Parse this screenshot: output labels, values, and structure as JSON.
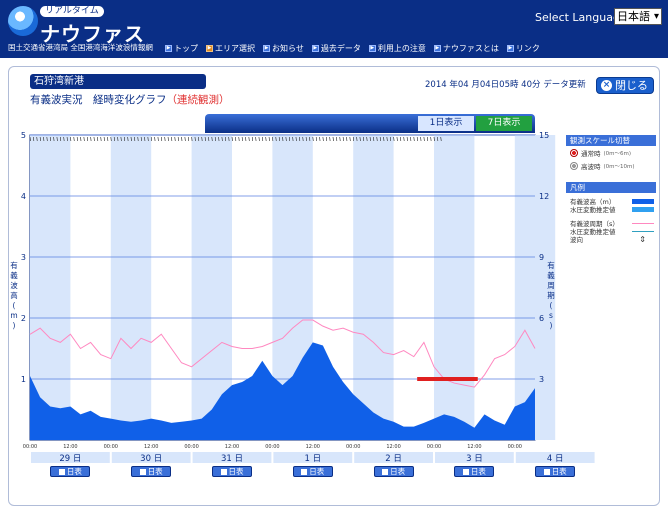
{
  "header": {
    "logo_sub": "リアルタイム",
    "logo_title": "ナウファス",
    "org": "国土交通省港湾局 全国港湾海洋波浪情報網",
    "language_label": "Select Language",
    "language_value": "日本語",
    "nav": [
      "トップ",
      "エリア選択",
      "お知らせ",
      "過去データ",
      "利用上の注意",
      "ナウファスとは",
      "リンク"
    ]
  },
  "page": {
    "station": "石狩湾新港",
    "subtitle": "有義波実況　経時変化グラフ",
    "mode": "（連続観測）",
    "updated": "2014 年04 月04日05時 40分 データ更新",
    "close_label": "閉じる",
    "tabs": [
      "1日表示",
      "7日表示"
    ],
    "table_button": "日表"
  },
  "sidebar": {
    "scale_header": "観測スケール切替",
    "scale_normal": "通常時",
    "scale_normal_range": "(0m～6m)",
    "scale_high": "高波時",
    "scale_high_range": "(0m～10m)",
    "legend_header": "凡例",
    "legend": [
      {
        "label": "有義波高（m）",
        "kind": "box",
        "color": "#1060e8"
      },
      {
        "label": "水圧変動推定値",
        "kind": "box",
        "color": "#30a0f0"
      },
      {
        "label": "有義波周期（s）",
        "kind": "line",
        "color": "#ff88c0"
      },
      {
        "label": "水圧変動推定値",
        "kind": "line",
        "color": "#30a0c0"
      },
      {
        "label": "波向",
        "kind": "arrow",
        "color": "#000000"
      }
    ]
  },
  "chart_data": {
    "type": "area",
    "ylabel_left": "有義波高(m)",
    "ylabel_right": "有義周期(s)",
    "ylim_left": [
      0,
      5
    ],
    "ylim_right": [
      0,
      15
    ],
    "left_ticks": [
      "1",
      "2",
      "3",
      "4",
      "5"
    ],
    "right_ticks": [
      "3",
      "6",
      "9",
      "12",
      "15"
    ],
    "grid": true,
    "days": [
      "29 日",
      "30 日",
      "31 日",
      "1 日",
      "2 日",
      "3 日",
      "4 日"
    ],
    "hour_ticks": [
      "00:00",
      "12:00"
    ],
    "x_hours_range": [
      0,
      150
    ],
    "series": [
      {
        "name": "有義波高（m）",
        "axis": "left",
        "color": "#1060e8",
        "x_hours": [
          0,
          3,
          6,
          9,
          12,
          15,
          18,
          21,
          24,
          27,
          30,
          33,
          36,
          39,
          42,
          45,
          48,
          51,
          54,
          57,
          60,
          63,
          66,
          69,
          72,
          75,
          78,
          81,
          84,
          87,
          90,
          93,
          96,
          99,
          102,
          105,
          108,
          111,
          114,
          117,
          120,
          123,
          126,
          129,
          132,
          135,
          138,
          141,
          144,
          147,
          150
        ],
        "values": [
          1.05,
          0.7,
          0.55,
          0.52,
          0.55,
          0.42,
          0.48,
          0.38,
          0.35,
          0.32,
          0.3,
          0.32,
          0.35,
          0.32,
          0.28,
          0.3,
          0.32,
          0.35,
          0.5,
          0.75,
          0.9,
          0.95,
          1.05,
          1.3,
          1.05,
          0.9,
          1.05,
          1.35,
          1.6,
          1.55,
          1.2,
          0.95,
          0.75,
          0.6,
          0.45,
          0.35,
          0.3,
          0.22,
          0.22,
          0.28,
          0.35,
          0.42,
          0.38,
          0.3,
          0.2,
          0.42,
          0.32,
          0.25,
          0.55,
          0.62,
          0.85
        ]
      },
      {
        "name": "有義波周期（s）",
        "axis": "right",
        "color": "#ff88c0",
        "x_hours": [
          0,
          3,
          6,
          9,
          12,
          15,
          18,
          21,
          24,
          27,
          30,
          33,
          36,
          39,
          42,
          45,
          48,
          51,
          54,
          57,
          60,
          63,
          66,
          69,
          72,
          75,
          78,
          81,
          84,
          87,
          90,
          93,
          96,
          99,
          102,
          105,
          108,
          111,
          114,
          117,
          120,
          123,
          126,
          129,
          132,
          135,
          138,
          141,
          144,
          147,
          150
        ],
        "values": [
          5.2,
          5.5,
          5.0,
          4.8,
          5.2,
          4.5,
          4.8,
          4.2,
          4.0,
          5.0,
          4.5,
          5.0,
          4.8,
          5.2,
          4.5,
          3.8,
          3.6,
          4.0,
          4.4,
          4.8,
          4.6,
          4.5,
          4.5,
          4.6,
          4.8,
          5.0,
          5.5,
          5.9,
          5.9,
          5.6,
          5.4,
          5.5,
          5.3,
          5.2,
          4.8,
          4.3,
          4.2,
          4.4,
          4.1,
          4.8,
          3.6,
          3.0,
          2.8,
          2.7,
          2.6,
          3.2,
          4.0,
          4.2,
          4.6,
          5.4,
          4.5
        ]
      },
      {
        "name": "水圧変動推定値",
        "axis": "right",
        "color": "#e02020",
        "x_hours": [
          115,
          133
        ],
        "values": [
          3.0,
          3.0
        ]
      }
    ]
  }
}
